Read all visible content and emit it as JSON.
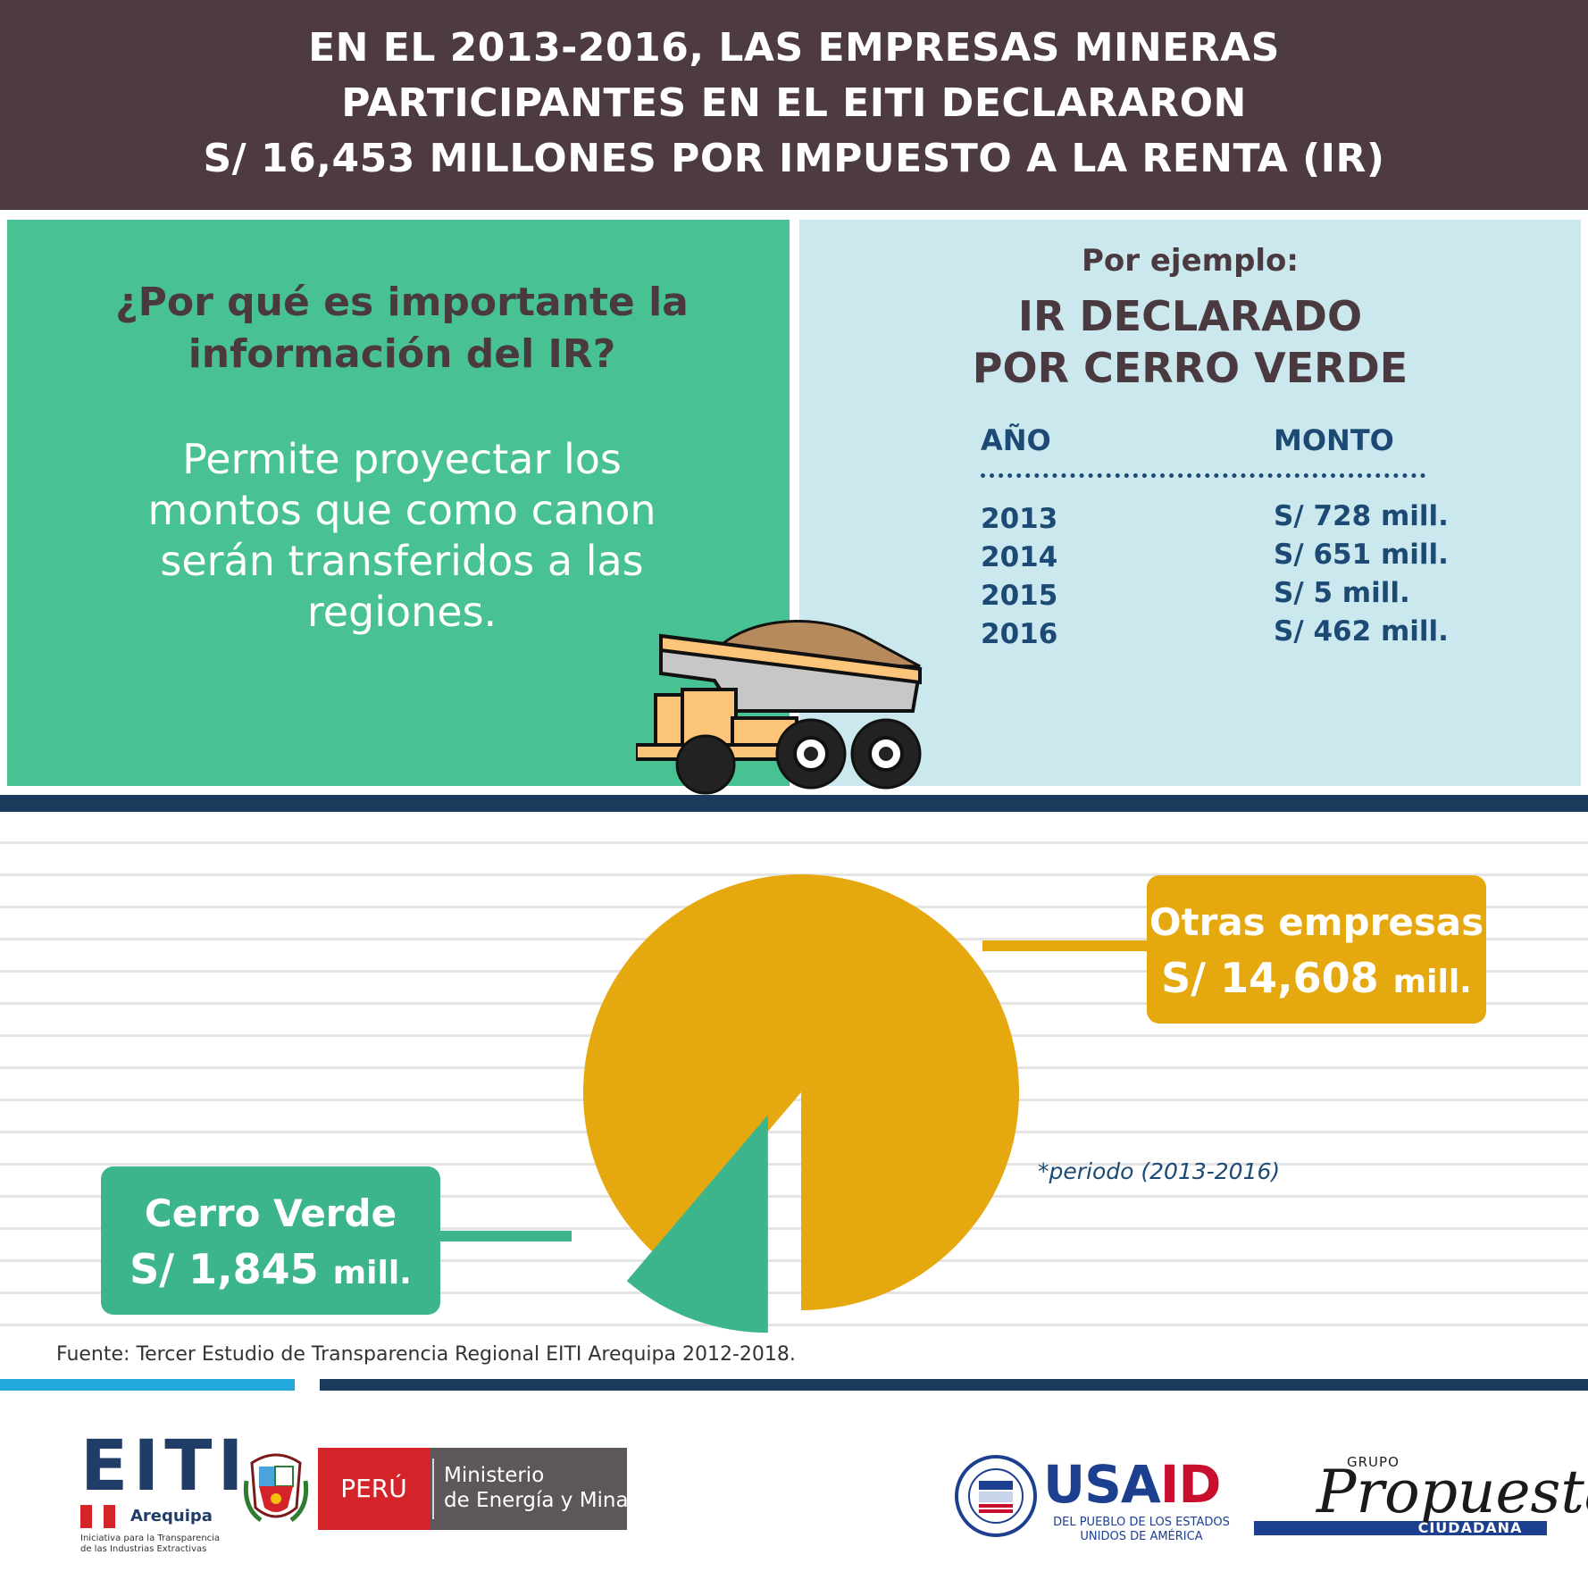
{
  "header": {
    "lines": [
      "EN EL 2013-2016, LAS EMPRESAS MINERAS",
      "PARTICIPANTES EN EL EITI DECLARARON",
      "S/ 16,453 MILLONES POR IMPUESTO A LA RENTA (IR)"
    ]
  },
  "left_panel": {
    "question": [
      "¿Por qué es importante la",
      "información del IR?"
    ],
    "answer": [
      "Permite proyectar los",
      "montos que como canon",
      "serán transferidos a las",
      "regiones."
    ]
  },
  "right_panel": {
    "intro": "Por ejemplo:",
    "title": [
      "IR DECLARADO",
      "POR CERRO VERDE"
    ],
    "table": {
      "headers": [
        "AÑO",
        "MONTO"
      ],
      "rows": [
        [
          "2013",
          "S/ 728 mill."
        ],
        [
          "2014",
          "S/ 651 mill."
        ],
        [
          "2015",
          "S/ 5 mill."
        ],
        [
          "2016",
          "S/ 462 mill."
        ]
      ]
    }
  },
  "chart_data": {
    "type": "pie",
    "slices": [
      {
        "label": "Otras empresas",
        "display": "S/ 14,608",
        "unit": "mill.",
        "value": 14608,
        "color": "#e5a90f"
      },
      {
        "label": "Cerro Verde",
        "display": "S/ 1,845",
        "unit": "mill.",
        "value": 1845,
        "color": "#3db58c"
      }
    ],
    "note": "*periodo (2013-2016)"
  },
  "footer": {
    "source": "Fuente: Tercer Estudio de Transparencia Regional EITI Arequipa 2012-2018.",
    "logos": {
      "eiti": {
        "letters": "EITI",
        "region": "Arequipa",
        "subtitle": [
          "Iniciativa para la Transparencia",
          "de las Industrias Extractivas"
        ]
      },
      "peru": {
        "country": "PERÚ",
        "ministry": [
          "Ministerio",
          "de Energía y Minas"
        ]
      },
      "usaid": {
        "name_blue": "USA",
        "name_red": "ID",
        "subtitle": [
          "DEL PUEBLO DE LOS ESTADOS",
          "UNIDOS DE AMÉRICA"
        ]
      },
      "propuesta": {
        "grupo": "GRUPO",
        "name": "Propuesta",
        "sub": "CIUDADANA"
      }
    }
  }
}
